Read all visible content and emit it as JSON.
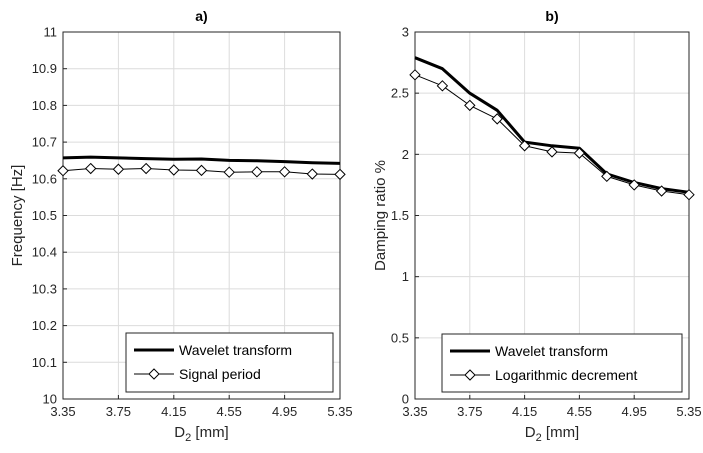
{
  "chart_data": [
    {
      "type": "line",
      "title": "a)",
      "xlabel": "D",
      "xlabel_sub": "2",
      "xlabel_unit": " [mm]",
      "ylabel": "Frequency [Hz]",
      "x": [
        3.35,
        3.55,
        3.75,
        3.95,
        4.15,
        4.35,
        4.55,
        4.75,
        4.95,
        5.15,
        5.35
      ],
      "xlim": [
        3.35,
        5.35
      ],
      "ylim": [
        10,
        11
      ],
      "xticks": [
        "3.35",
        "3.75",
        "4.15",
        "4.55",
        "4.95",
        "5.35"
      ],
      "yticks": [
        "10",
        "10.1",
        "10.2",
        "10.3",
        "10.4",
        "10.5",
        "10.6",
        "10.7",
        "10.8",
        "10.9",
        "11"
      ],
      "grid": true,
      "legend_position": "bottom-right",
      "series": [
        {
          "name": "Wavelet transform",
          "style": "thick",
          "color": "#000000",
          "values": [
            10.657,
            10.659,
            10.657,
            10.655,
            10.653,
            10.654,
            10.65,
            10.649,
            10.647,
            10.644,
            10.642
          ]
        },
        {
          "name": "Signal period",
          "style": "diamond",
          "color": "#000000",
          "values": [
            10.622,
            10.628,
            10.626,
            10.628,
            10.624,
            10.623,
            10.618,
            10.619,
            10.619,
            10.613,
            10.612
          ]
        }
      ]
    },
    {
      "type": "line",
      "title": "b)",
      "xlabel": "D",
      "xlabel_sub": "2",
      "xlabel_unit": " [mm]",
      "ylabel": "Damping ratio %",
      "x": [
        3.35,
        3.55,
        3.75,
        3.95,
        4.15,
        4.35,
        4.55,
        4.75,
        4.95,
        5.15,
        5.35
      ],
      "xlim": [
        3.35,
        5.35
      ],
      "ylim": [
        0,
        3
      ],
      "xticks": [
        "3.35",
        "3.75",
        "4.15",
        "4.55",
        "4.95",
        "5.35"
      ],
      "yticks": [
        "0",
        "0.5",
        "1",
        "1.5",
        "2",
        "2.5",
        "3"
      ],
      "grid": true,
      "legend_position": "bottom-right",
      "series": [
        {
          "name": "Wavelet transform",
          "style": "thick",
          "color": "#000000",
          "values": [
            2.79,
            2.7,
            2.5,
            2.36,
            2.1,
            2.07,
            2.05,
            1.84,
            1.77,
            1.72,
            1.69
          ]
        },
        {
          "name": "Logarithmic decrement",
          "style": "diamond",
          "color": "#000000",
          "values": [
            2.65,
            2.56,
            2.4,
            2.29,
            2.07,
            2.02,
            2.01,
            1.82,
            1.75,
            1.7,
            1.67
          ]
        }
      ]
    }
  ]
}
